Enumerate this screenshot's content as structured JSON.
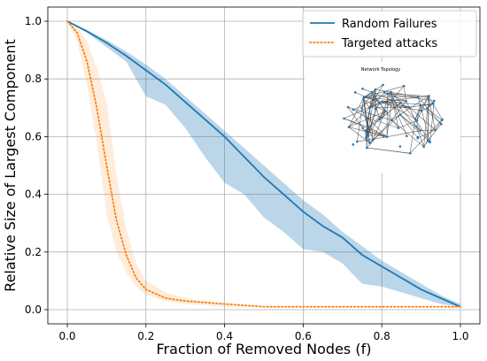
{
  "chart_data": {
    "type": "line",
    "xlabel": "Fraction of Removed Nodes (f)",
    "ylabel": "Relative Size of Largest Component",
    "xlim": [
      0.0,
      1.0
    ],
    "ylim": [
      0.0,
      1.0
    ],
    "xticks": [
      "0.0",
      "0.2",
      "0.4",
      "0.6",
      "0.8",
      "1.0"
    ],
    "yticks": [
      "0.0",
      "0.2",
      "0.4",
      "0.6",
      "0.8",
      "1.0"
    ],
    "grid": true,
    "legend_position": "top-right",
    "series": [
      {
        "name": "Random Failures",
        "color": "#1f77b4",
        "style": "solid",
        "x": [
          0.0,
          0.05,
          0.1,
          0.15,
          0.2,
          0.25,
          0.3,
          0.35,
          0.4,
          0.45,
          0.5,
          0.55,
          0.6,
          0.65,
          0.7,
          0.75,
          0.8,
          0.85,
          0.9,
          0.95,
          1.0
        ],
        "y": [
          1.0,
          0.965,
          0.925,
          0.88,
          0.83,
          0.78,
          0.72,
          0.66,
          0.6,
          0.53,
          0.46,
          0.4,
          0.34,
          0.29,
          0.25,
          0.19,
          0.15,
          0.11,
          0.07,
          0.04,
          0.01
        ],
        "band_upper": [
          1.0,
          0.97,
          0.935,
          0.895,
          0.85,
          0.8,
          0.74,
          0.68,
          0.62,
          0.56,
          0.5,
          0.44,
          0.38,
          0.33,
          0.27,
          0.22,
          0.17,
          0.13,
          0.09,
          0.05,
          0.02
        ],
        "band_lower": [
          1.0,
          0.96,
          0.91,
          0.86,
          0.74,
          0.71,
          0.63,
          0.53,
          0.44,
          0.4,
          0.32,
          0.27,
          0.21,
          0.2,
          0.16,
          0.09,
          0.08,
          0.06,
          0.04,
          0.02,
          0.01
        ]
      },
      {
        "name": "Targeted attacks",
        "color": "#ff7f0e",
        "style": "dotted",
        "x": [
          0.0,
          0.025,
          0.05,
          0.075,
          0.1,
          0.125,
          0.15,
          0.175,
          0.2,
          0.25,
          0.3,
          0.4,
          0.5,
          0.6,
          0.8,
          1.0
        ],
        "y": [
          1.0,
          0.96,
          0.86,
          0.7,
          0.5,
          0.31,
          0.19,
          0.11,
          0.07,
          0.04,
          0.03,
          0.02,
          0.01,
          0.01,
          0.01,
          0.01
        ],
        "band_upper": [
          1.0,
          0.98,
          0.93,
          0.84,
          0.72,
          0.47,
          0.28,
          0.16,
          0.1,
          0.06,
          0.04,
          0.02,
          0.01,
          0.01,
          0.01,
          0.01
        ],
        "band_lower": [
          1.0,
          0.93,
          0.78,
          0.58,
          0.33,
          0.2,
          0.13,
          0.08,
          0.05,
          0.03,
          0.02,
          0.01,
          0.01,
          0.01,
          0.01,
          0.01
        ]
      }
    ]
  },
  "inset": {
    "title": "Network Topology",
    "node_color": "#1f77b4",
    "edge_color": "#404040"
  }
}
